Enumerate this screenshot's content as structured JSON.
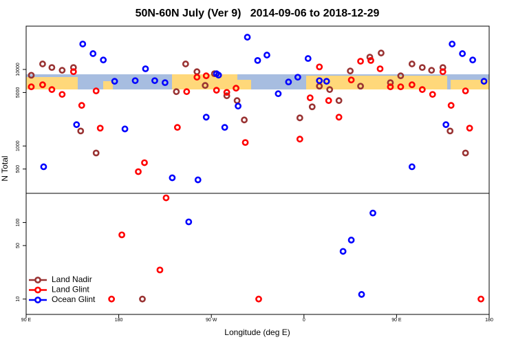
{
  "chart_data": {
    "type": "scatter",
    "title": "50N-60N July (Ver 9)   2014-09-06 to 2018-12-29",
    "xlabel": "Longitude (deg E)",
    "ylabel": "N Total",
    "xlim": [
      90,
      540
    ],
    "xticks": [
      {
        "value": 90,
        "label": "90 E"
      },
      180,
      {
        "value": 270,
        "label": "90 W"
      },
      {
        "value": 360,
        "label": "0"
      },
      {
        "value": 450,
        "label": "90 E"
      },
      {
        "value": 540,
        "label": "180"
      }
    ],
    "ylim": [
      6.3,
      36800
    ],
    "yticks": [
      10,
      50,
      100,
      500,
      1000,
      5000,
      10000
    ],
    "yscale": "log",
    "legend": "lower left",
    "series": [
      {
        "name": "Land Nadir",
        "color": "#993333",
        "x": [
          95,
          106,
          115,
          125,
          136,
          143,
          158,
          203,
          236,
          245,
          256,
          264,
          273,
          285,
          295,
          302,
          356,
          368,
          375,
          385,
          394,
          405,
          415,
          424,
          435,
          444,
          454,
          465,
          475,
          484,
          495,
          502,
          517
        ],
        "values": [
          8400,
          11800,
          10600,
          9750,
          10600,
          1570,
          810,
          10,
          5130,
          11800,
          9350,
          6180,
          8800,
          4530,
          3920,
          2190,
          2330,
          3250,
          6050,
          5460,
          3920,
          9550,
          6050,
          14500,
          16400,
          6720,
          8260,
          11800,
          10600,
          9750,
          10600,
          1570,
          810
        ]
      },
      {
        "name": "Land Glint",
        "color": "#ff0000",
        "x": [
          95,
          106,
          115,
          125,
          136,
          144,
          158,
          162,
          173,
          183,
          199,
          205,
          220,
          226,
          237,
          246,
          256,
          265,
          275,
          285,
          294,
          303,
          316,
          356,
          366,
          375,
          384,
          394,
          406,
          415,
          425,
          434,
          444,
          454,
          465,
          475,
          485,
          495,
          503,
          517,
          521,
          532
        ],
        "values": [
          5930,
          6310,
          5460,
          4720,
          9350,
          3390,
          5240,
          1710,
          10,
          69,
          462,
          605,
          24,
          210,
          1750,
          5130,
          7920,
          8260,
          5350,
          5020,
          5690,
          1110,
          10,
          1230,
          4260,
          10800,
          3920,
          2380,
          7290,
          12800,
          13100,
          10200,
          5930,
          5930,
          6310,
          5460,
          4720,
          9350,
          3390,
          5240,
          1710,
          10
        ]
      },
      {
        "name": "Ocean Glint",
        "color": "#0000ff",
        "x": [
          107,
          139,
          145,
          155,
          165,
          176,
          186,
          196,
          206,
          215,
          225,
          232,
          248,
          257,
          265,
          275,
          277,
          283,
          296,
          305,
          315,
          324,
          335,
          345,
          354,
          364,
          375,
          382,
          398,
          406,
          416,
          427,
          465,
          498,
          504,
          514,
          524,
          535
        ],
        "values": [
          535,
          1900,
          21500,
          16100,
          13300,
          7000,
          1670,
          7140,
          10200,
          7140,
          6720,
          384,
          102,
          361,
          2380,
          8790,
          8430,
          1750,
          3320,
          26400,
          13100,
          15400,
          4820,
          6860,
          7920,
          13900,
          7140,
          7000,
          42,
          59,
          11.5,
          133,
          535,
          1900,
          21500,
          16100,
          13300,
          7000
        ]
      }
    ]
  }
}
